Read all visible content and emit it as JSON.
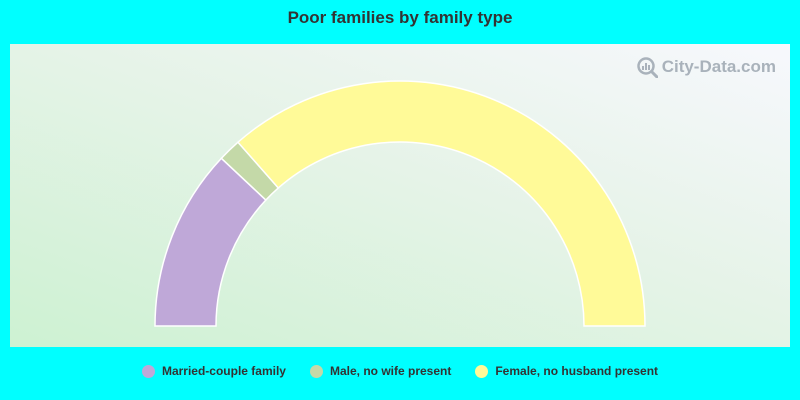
{
  "chart_data": {
    "type": "pie",
    "variant": "half-donut",
    "title": "Poor families by family type",
    "categories": [
      "Married-couple family",
      "Male, no wife present",
      "Female, no husband present"
    ],
    "values": [
      24,
      3,
      73
    ],
    "colors": [
      "#bfa8d8",
      "#c4d9a8",
      "#fffa98"
    ],
    "legend_position": "bottom"
  },
  "watermark": {
    "text": "City-Data.com",
    "icon": "magnifier-chart-icon"
  }
}
